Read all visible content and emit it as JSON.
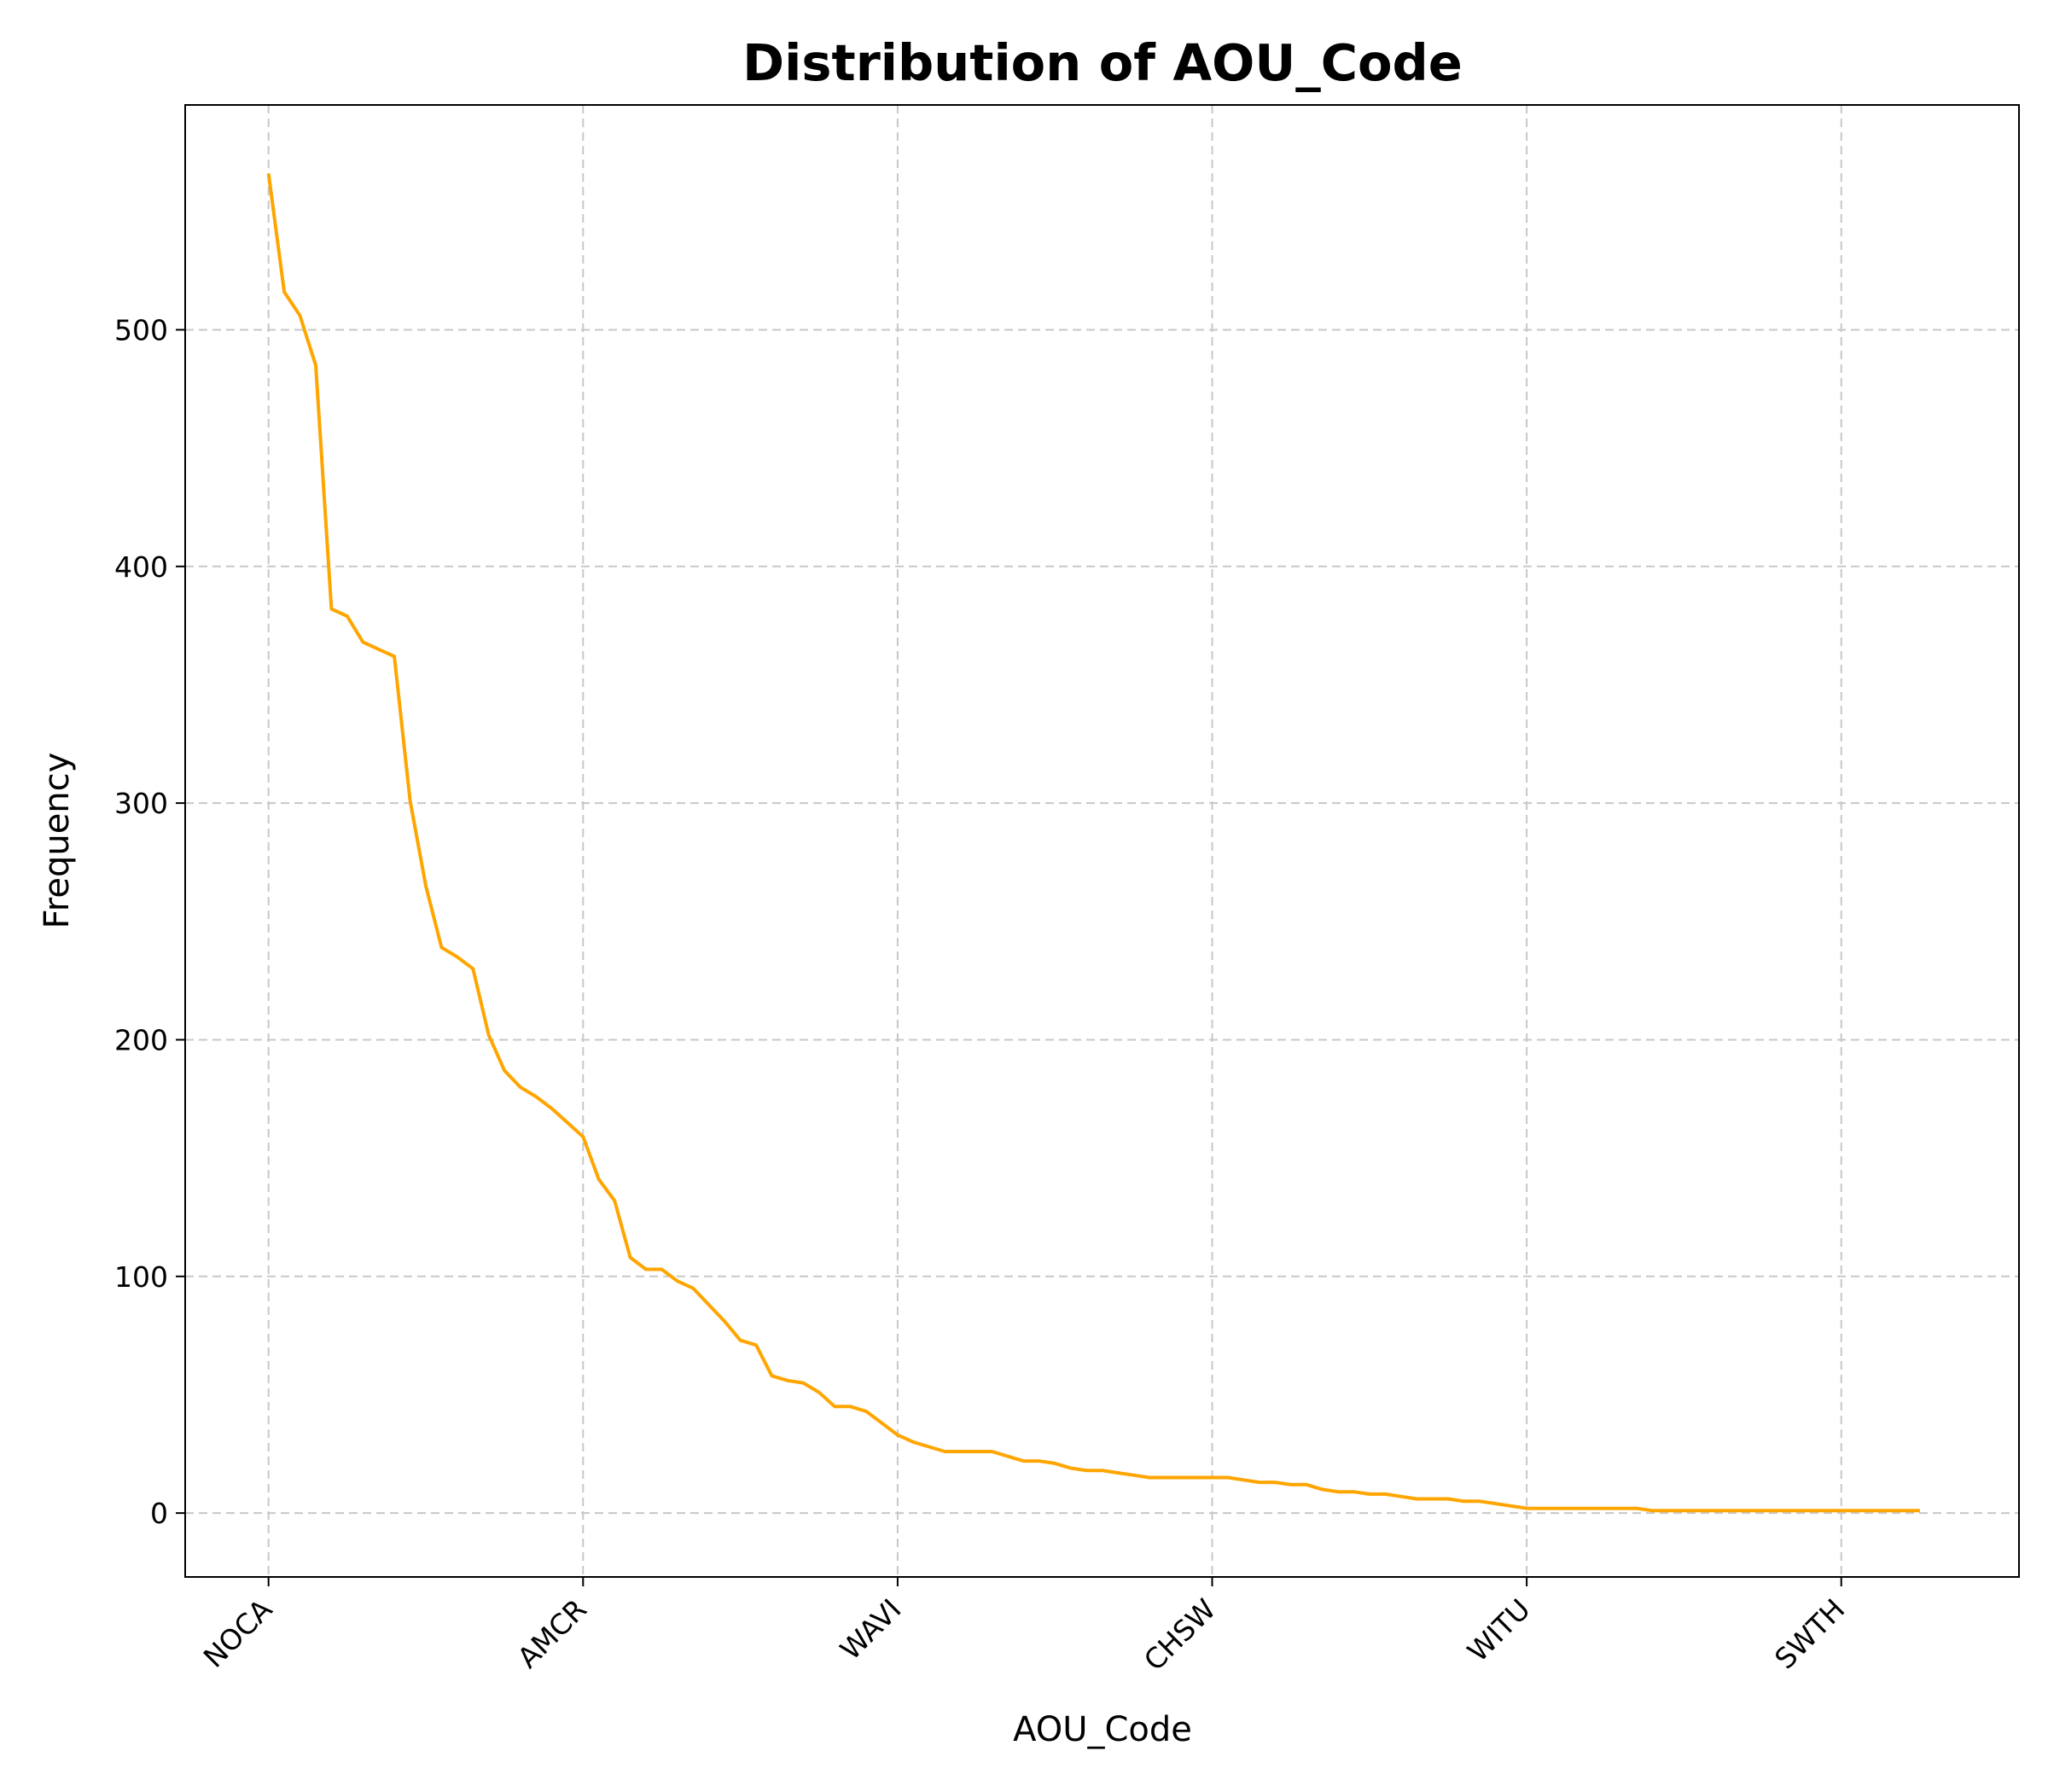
{
  "chart_data": {
    "type": "line",
    "title": "Distribution of AOU_Code",
    "xlabel": "AOU_Code",
    "ylabel": "Frequency",
    "x_tick_labels": [
      "NOCA",
      "AMCR",
      "WAVI",
      "CHSW",
      "WITU",
      "SWTH"
    ],
    "x_tick_positions": [
      0,
      20,
      40,
      60,
      80,
      100
    ],
    "y_ticks": [
      0,
      100,
      200,
      300,
      400,
      500
    ],
    "ylim": [
      -27,
      595
    ],
    "xlim": [
      -5.3,
      111.3
    ],
    "grid": true,
    "color": "#ffa500",
    "series": [
      {
        "values": [
          566,
          516,
          506,
          485,
          382,
          379,
          368,
          365,
          362,
          301,
          265,
          239,
          235,
          230,
          202,
          187,
          180,
          176,
          171,
          165,
          159,
          141,
          132,
          108,
          103,
          103,
          98,
          95,
          88,
          81,
          73,
          71,
          58,
          56,
          55,
          51,
          45,
          45,
          43,
          38,
          33,
          30,
          28,
          26,
          26,
          26,
          26,
          24,
          22,
          22,
          21,
          19,
          18,
          18,
          17,
          16,
          15,
          15,
          15,
          15,
          15,
          15,
          14,
          13,
          13,
          12,
          12,
          10,
          9,
          9,
          8,
          8,
          7,
          6,
          6,
          6,
          5,
          5,
          4,
          3,
          2,
          2,
          2,
          2,
          2,
          2,
          2,
          2,
          1,
          1,
          1,
          1,
          1,
          1,
          1,
          1,
          1,
          1,
          1,
          1,
          1,
          1,
          1,
          1,
          1,
          1
        ]
      }
    ]
  }
}
